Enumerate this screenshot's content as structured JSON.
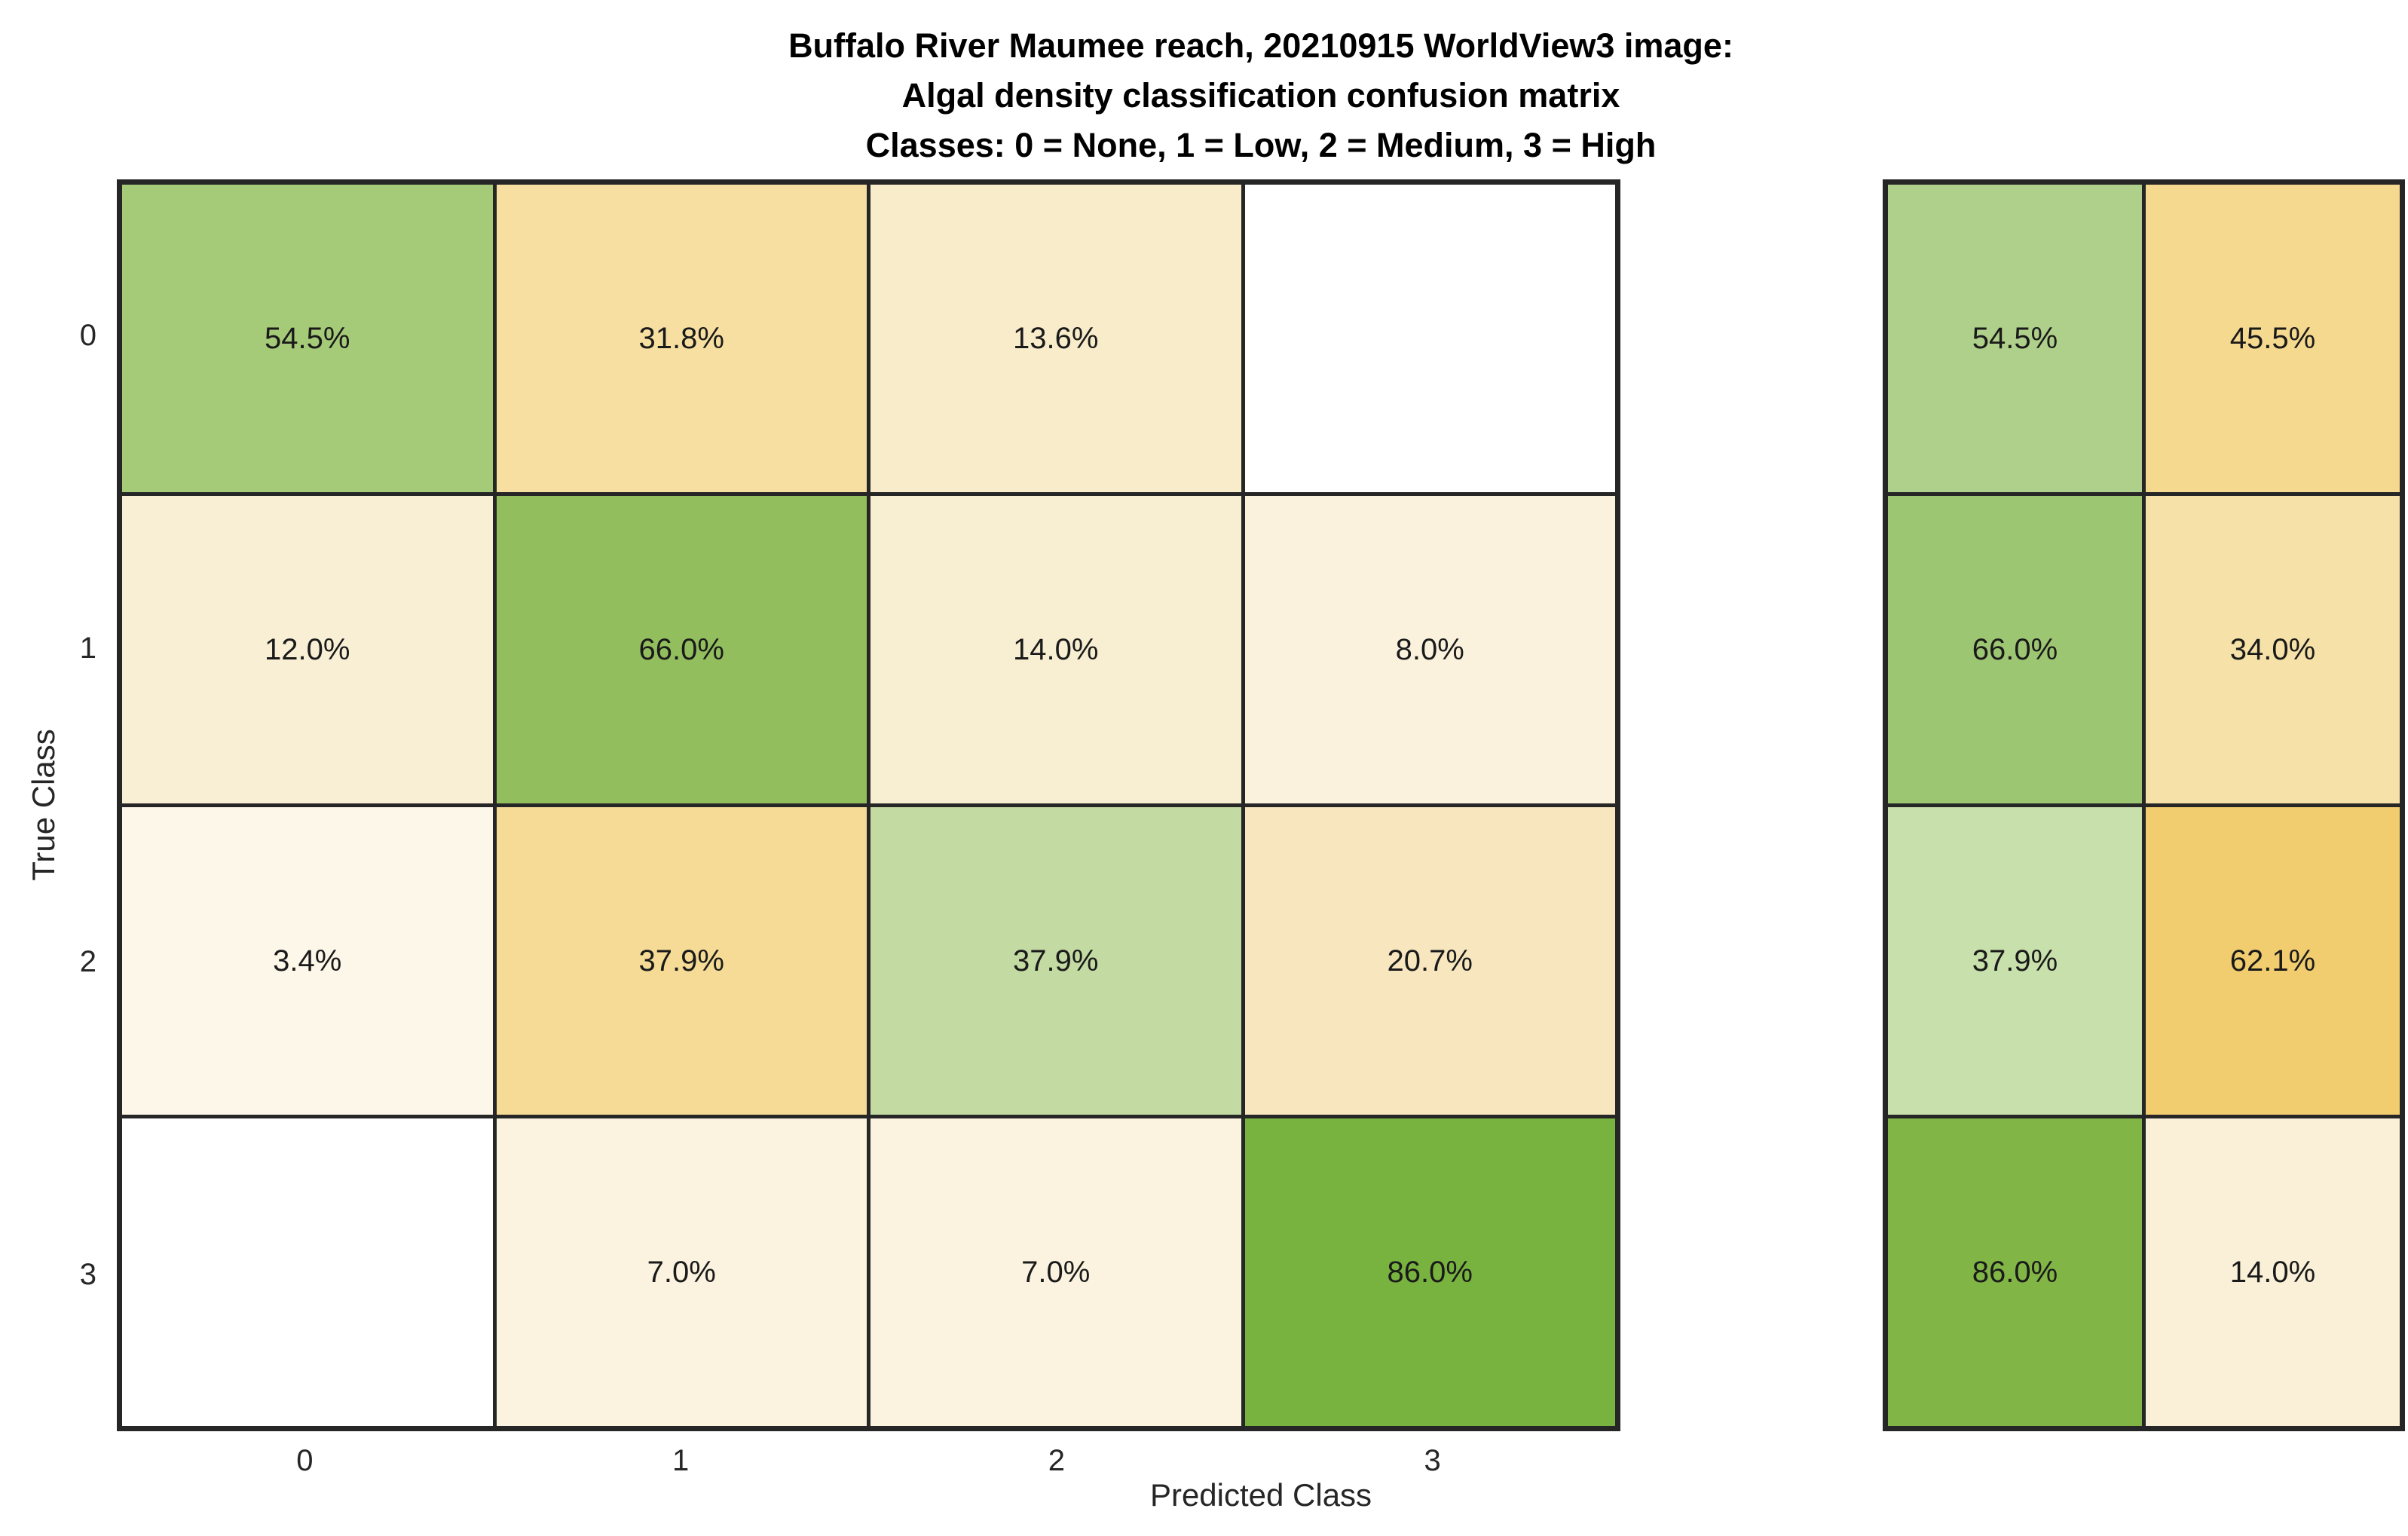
{
  "title": {
    "line1": "Buffalo River Maumee reach, 20210915 WorldView3 image:",
    "line2": "Algal density classification confusion matrix",
    "line3": "Classes: 0 = None, 1 = Low, 2 = Medium, 3 = High"
  },
  "chart_data": {
    "type": "heatmap",
    "subtype": "confusion-matrix-with-row-summary",
    "title": "Buffalo River Maumee reach, 20210915 WorldView3 image: Algal density classification confusion matrix. Classes: 0 = None, 1 = Low, 2 = Medium, 3 = High",
    "xlabel": "Predicted Class",
    "ylabel": "True Class",
    "x_tick_labels": [
      "0",
      "1",
      "2",
      "3"
    ],
    "y_tick_labels": [
      "0",
      "1",
      "2",
      "3"
    ],
    "normalization": "row-normalized percentages",
    "legend_position": "none",
    "grid": "dark cell borders",
    "colors": {
      "grid_line": "#262626",
      "cell_text": "#1a1a1a",
      "background": "#ffffff",
      "title_text": "#000000"
    },
    "matrix": {
      "rows": [
        {
          "true_class": "0",
          "cells": [
            {
              "value": 54.5,
              "label": "54.5%",
              "color": "#A5CB78"
            },
            {
              "value": 31.8,
              "label": "31.8%",
              "color": "#F6DFA0"
            },
            {
              "value": 13.6,
              "label": "13.6%",
              "color": "#F8ECCB"
            },
            {
              "value": null,
              "label": "",
              "color": "#FFFFFF"
            }
          ]
        },
        {
          "true_class": "1",
          "cells": [
            {
              "value": 12.0,
              "label": "12.0%",
              "color": "#F9EFD5"
            },
            {
              "value": 66.0,
              "label": "66.0%",
              "color": "#93BE5E"
            },
            {
              "value": 14.0,
              "label": "14.0%",
              "color": "#F8EED1"
            },
            {
              "value": 8.0,
              "label": "8.0%",
              "color": "#FAF2DC"
            }
          ]
        },
        {
          "true_class": "2",
          "cells": [
            {
              "value": 3.4,
              "label": "3.4%",
              "color": "#FCF7E9"
            },
            {
              "value": 37.9,
              "label": "37.9%",
              "color": "#F5DB96"
            },
            {
              "value": 37.9,
              "label": "37.9%",
              "color": "#C3DAA3"
            },
            {
              "value": 20.7,
              "label": "20.7%",
              "color": "#F7E6BE"
            }
          ]
        },
        {
          "true_class": "3",
          "cells": [
            {
              "value": null,
              "label": "",
              "color": "#FFFFFF"
            },
            {
              "value": 7.0,
              "label": "7.0%",
              "color": "#FBF3DF"
            },
            {
              "value": 7.0,
              "label": "7.0%",
              "color": "#FBF3DF"
            },
            {
              "value": 86.0,
              "label": "86.0%",
              "color": "#78B23F"
            }
          ]
        }
      ]
    },
    "row_summary": {
      "description": "per-row correct vs incorrect percentages",
      "rows": [
        {
          "true_class": "0",
          "correct": {
            "value": 54.5,
            "label": "54.5%",
            "color": "#AFD08A"
          },
          "incorrect": {
            "value": 45.5,
            "label": "45.5%",
            "color": "#F5D98F"
          }
        },
        {
          "true_class": "1",
          "correct": {
            "value": 66.0,
            "label": "66.0%",
            "color": "#9DC672"
          },
          "incorrect": {
            "value": 34.0,
            "label": "34.0%",
            "color": "#F6E1A8"
          }
        },
        {
          "true_class": "2",
          "correct": {
            "value": 37.9,
            "label": "37.9%",
            "color": "#C8E0AB"
          },
          "incorrect": {
            "value": 62.1,
            "label": "62.1%",
            "color": "#F2CD6F"
          }
        },
        {
          "true_class": "3",
          "correct": {
            "value": 86.0,
            "label": "86.0%",
            "color": "#81B546"
          },
          "incorrect": {
            "value": 14.0,
            "label": "14.0%",
            "color": "#F9F0D7"
          }
        }
      ]
    }
  }
}
